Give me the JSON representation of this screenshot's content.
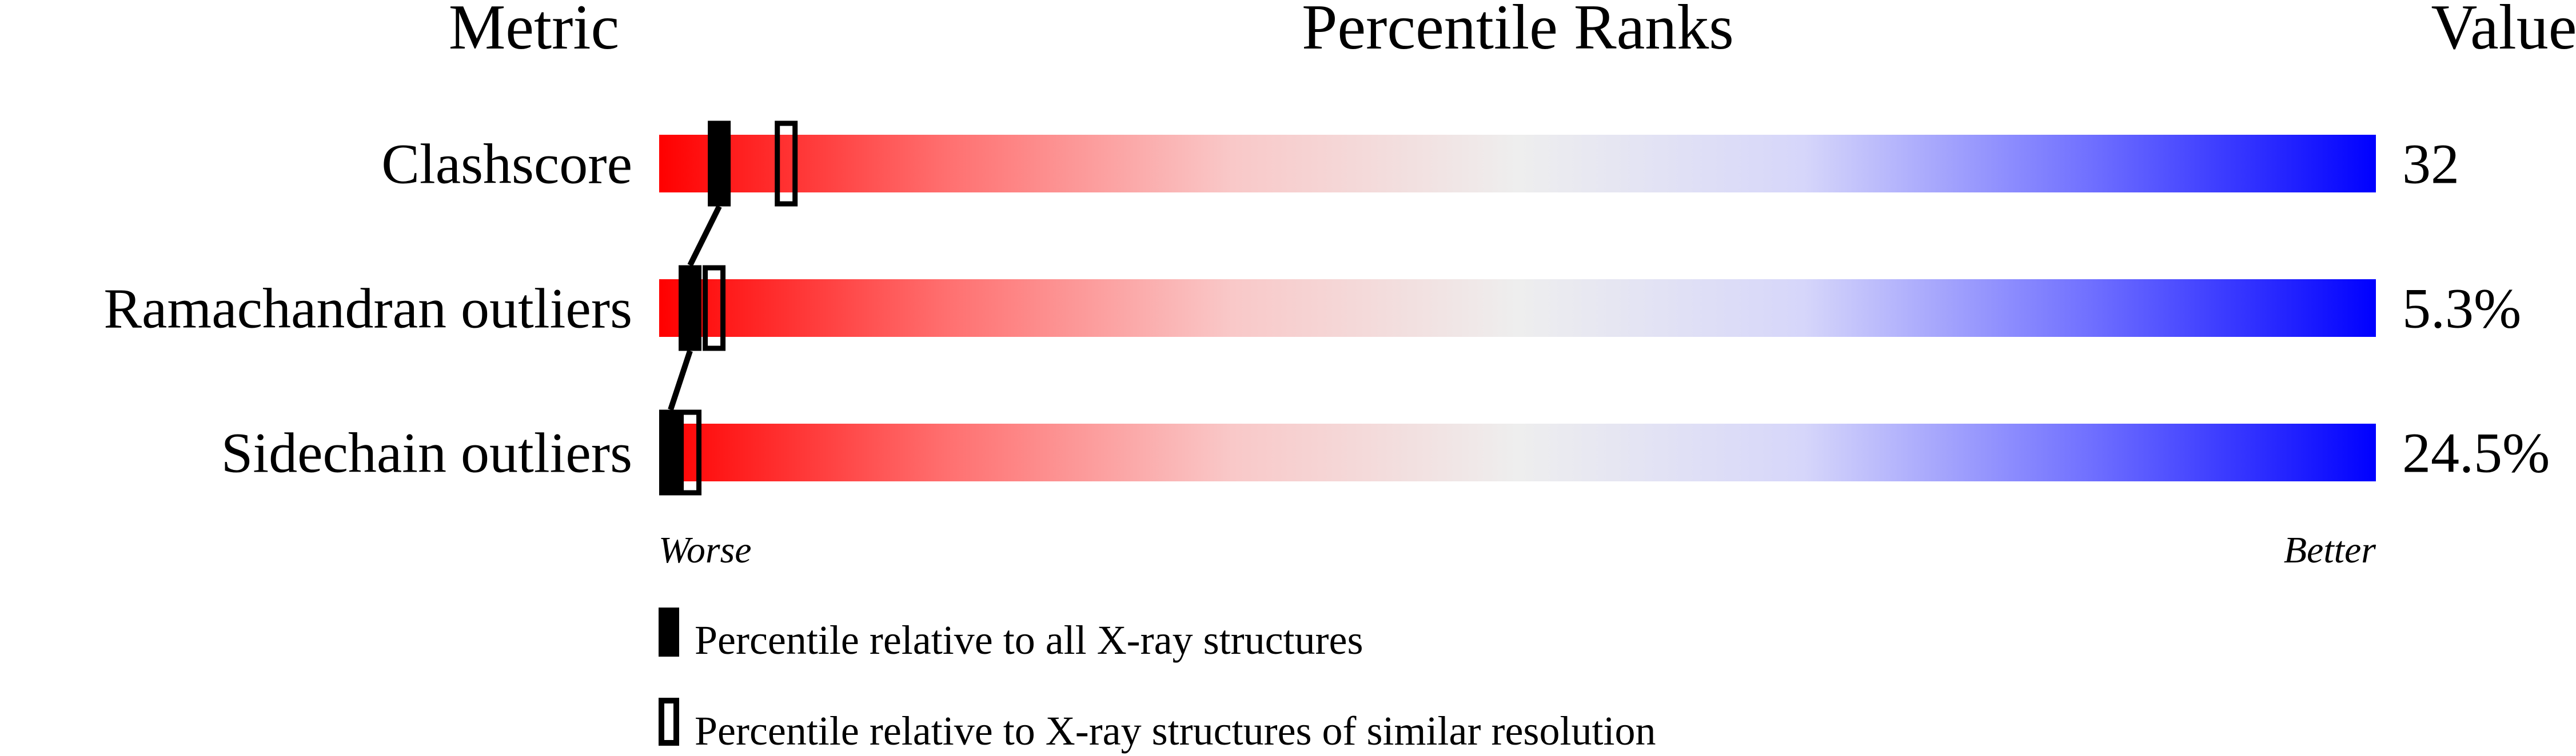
{
  "chart_data": {
    "type": "bar",
    "headers": {
      "metric": "Metric",
      "percentile": "Percentile Ranks",
      "value": "Value"
    },
    "xlim": [
      0,
      100
    ],
    "axis_labels": {
      "left": "Worse",
      "right": "Better"
    },
    "gradient_colors": [
      "#ff0000",
      "#ff6f6f",
      "#f9c8c8",
      "#eeeeee",
      "#d6d6fa",
      "#7070ff",
      "#0000ff"
    ],
    "metrics": [
      {
        "name": "Clashscore",
        "value": "32",
        "percentile_all": 3.5,
        "percentile_similar": 7.4
      },
      {
        "name": "Ramachandran outliers",
        "value": "5.3%",
        "percentile_all": 1.8,
        "percentile_similar": 3.2
      },
      {
        "name": "Sidechain outliers",
        "value": "24.5%",
        "percentile_all": 0.6,
        "percentile_similar": 1.8
      }
    ],
    "legend": [
      {
        "marker": "filled",
        "label": "Percentile relative to all X-ray structures"
      },
      {
        "marker": "open",
        "label": "Percentile relative to X-ray structures of similar resolution"
      }
    ]
  }
}
